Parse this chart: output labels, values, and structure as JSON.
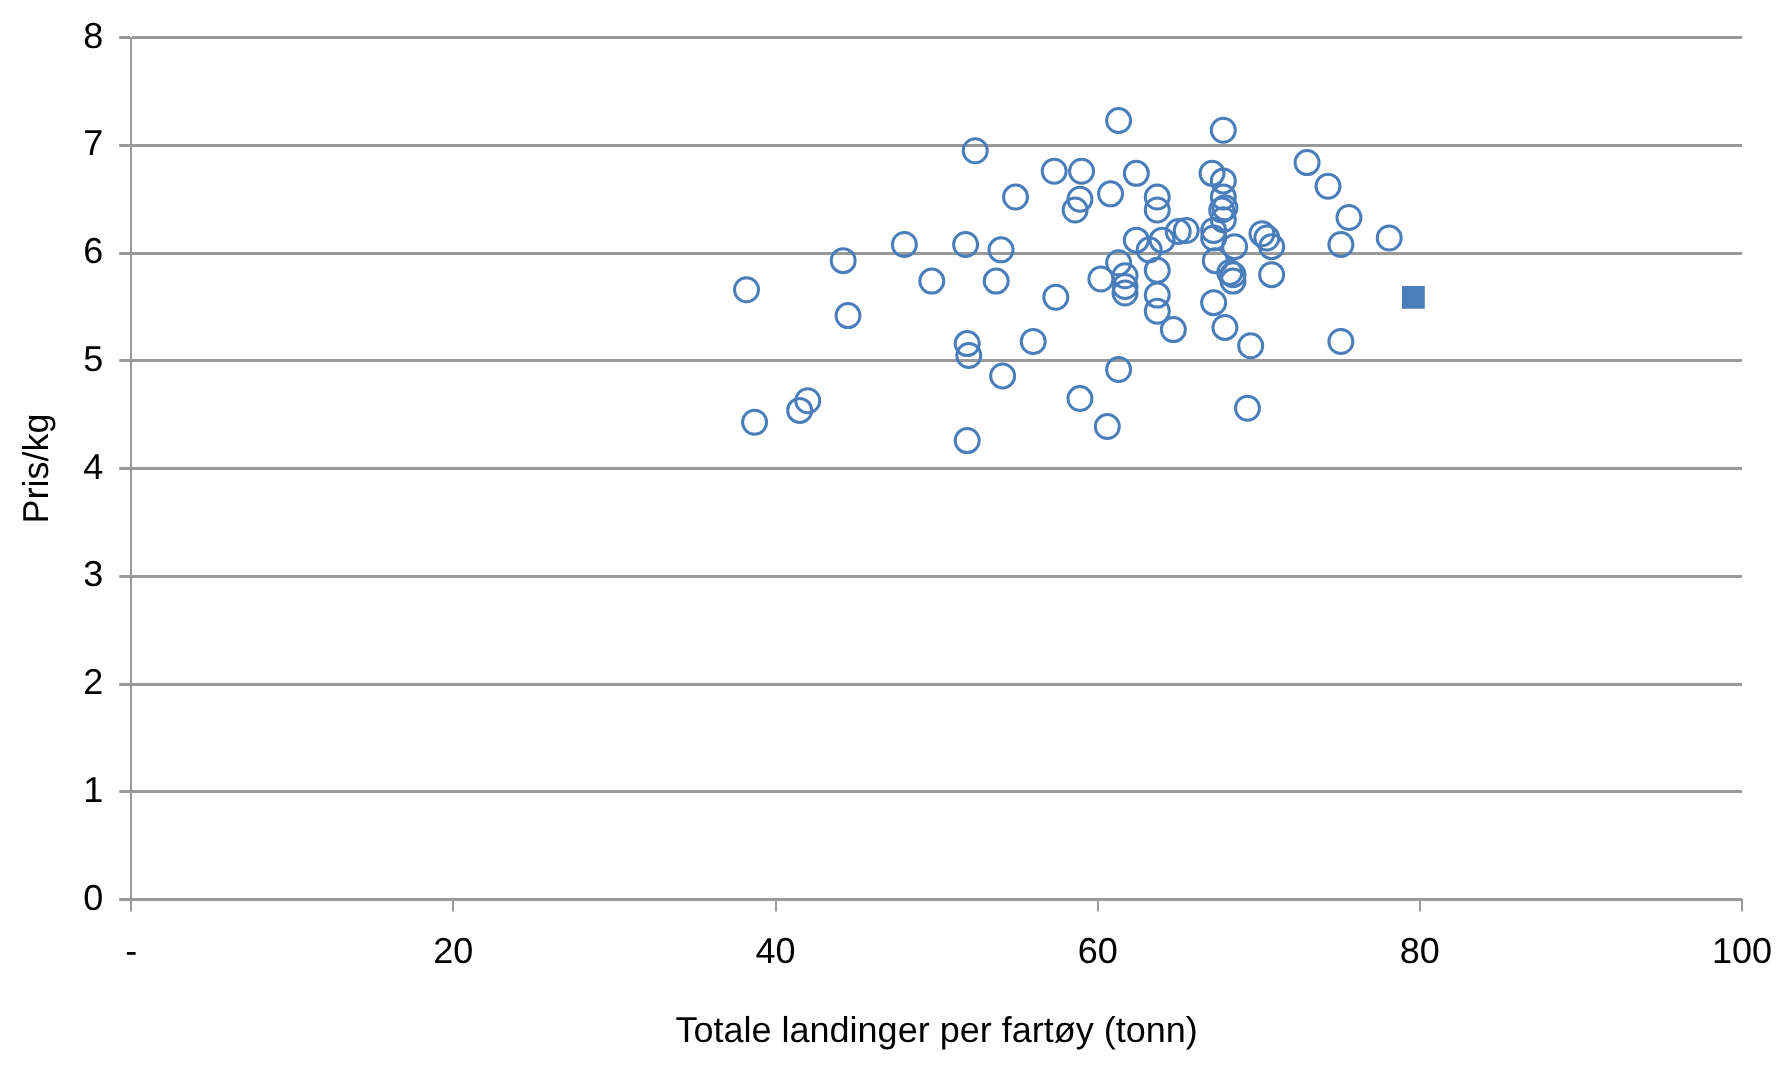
{
  "chart_data": {
    "type": "scatter",
    "xlabel": "Totale landinger per fartøy (tonn)",
    "ylabel": "Pris/kg",
    "xlim": [
      0,
      100
    ],
    "xticks": [
      {
        "value": 0,
        "label": "-"
      },
      20,
      40,
      60,
      80,
      100
    ],
    "ylim": [
      0,
      8
    ],
    "yticks": [
      0,
      1,
      2,
      3,
      4,
      5,
      6,
      7,
      8
    ],
    "grid": "y",
    "legend": false,
    "series": [
      {
        "color": "#4a7ebb",
        "marker": "circle",
        "x": [
          38.2,
          38.7,
          41.5,
          42,
          44.2,
          44.5,
          48,
          49.7,
          51.8,
          51.9,
          52,
          51.9,
          52.4,
          54,
          53.7,
          54.1,
          54.9,
          56,
          57.3,
          57.4,
          58.6,
          58.9,
          59,
          58.9,
          60.2,
          60.8,
          60.6,
          61.3,
          61.3,
          61.3,
          61.7,
          61.7,
          61.7,
          62.4,
          62.4,
          63.2,
          63.7,
          63.7,
          63.7,
          63.7,
          63.7,
          64,
          64.7,
          65,
          65.5,
          67.1,
          67.2,
          67.2,
          67.3,
          67.2,
          67.7,
          67.8,
          67.8,
          67.8,
          67.8,
          67.9,
          67.9,
          68.2,
          68.4,
          68.5,
          68.4,
          69.5,
          69.3,
          70.2,
          70.5,
          70.8,
          70.8,
          73,
          74.3,
          75.6,
          75.1,
          75.1,
          78.1
        ],
        "values": [
          5.66,
          4.43,
          4.54,
          4.63,
          5.93,
          5.42,
          6.08,
          5.74,
          6.08,
          5.16,
          5.05,
          4.26,
          6.95,
          6.03,
          5.74,
          4.86,
          6.52,
          5.18,
          6.76,
          5.59,
          6.4,
          6.5,
          6.76,
          4.65,
          5.76,
          6.55,
          4.39,
          7.23,
          5.91,
          4.92,
          5.79,
          5.69,
          5.63,
          6.12,
          6.74,
          6.03,
          6.52,
          6.4,
          5.84,
          5.61,
          5.46,
          6.12,
          5.29,
          6.2,
          6.21,
          6.74,
          6.14,
          6.21,
          5.93,
          5.54,
          6.4,
          7.14,
          6.67,
          6.52,
          6.31,
          6.42,
          5.31,
          5.82,
          5.74,
          6.06,
          5.8,
          5.14,
          4.56,
          6.18,
          6.14,
          6.06,
          5.8,
          6.84,
          6.62,
          6.33,
          6.08,
          5.18,
          6.14
        ]
      },
      {
        "color": "#4a7ebb",
        "marker": "square",
        "x": [
          79.6
        ],
        "values": [
          5.59
        ]
      }
    ]
  }
}
